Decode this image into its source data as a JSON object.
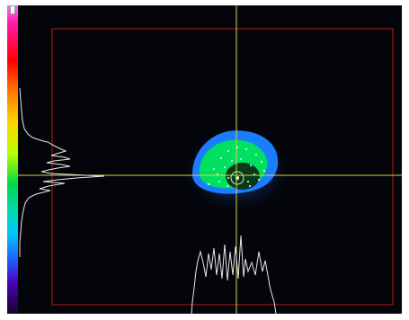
{
  "app": {
    "view": "beam-profile-camera-view"
  },
  "colors": {
    "background": "#03050b",
    "crosshair": "#d7d442",
    "roi_border": "#b31a1a",
    "profile_trace": "#e8e8e8",
    "beam_outer": "#1a7cff",
    "beam_middle": "#00e060",
    "beam_core": "#0b3a1b"
  },
  "icons": {
    "colorbar_marker": "slider-thumb-icon"
  },
  "overlays": {
    "crosshair_visible": true,
    "roi_visible": true,
    "horizontal_profile_visible": true,
    "vertical_profile_visible": true,
    "colorbar_visible": true
  }
}
